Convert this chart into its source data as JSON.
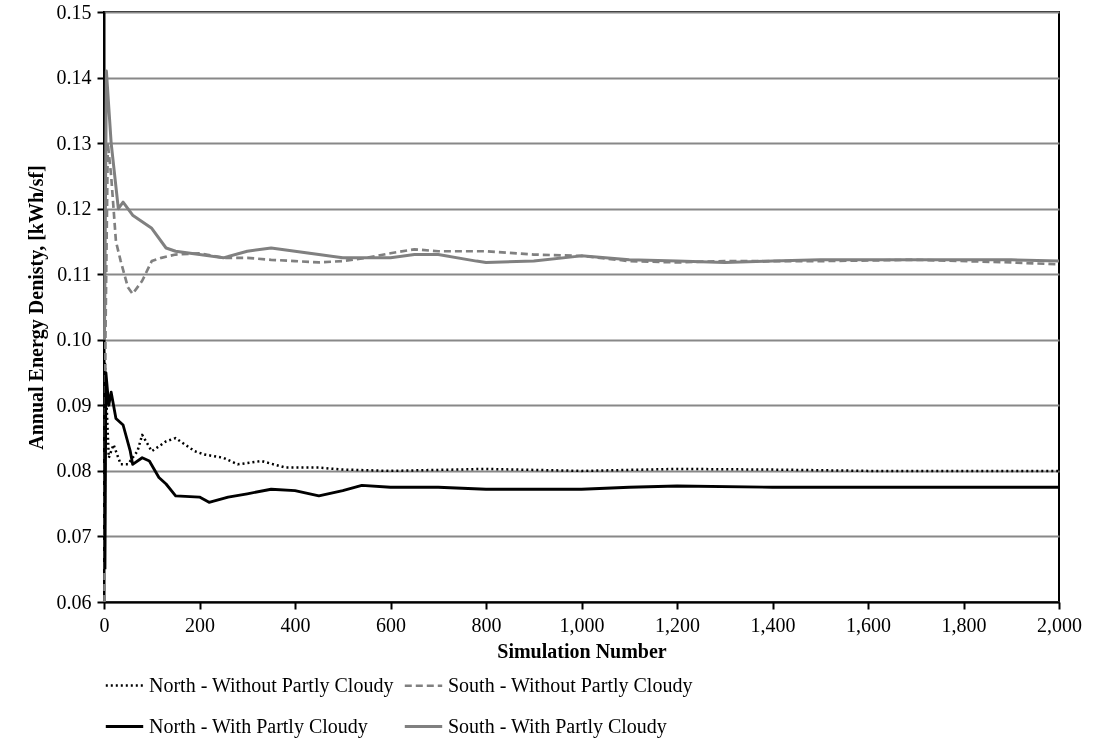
{
  "chart_data": {
    "type": "line",
    "xlabel": "Simulation Number",
    "ylabel": "Annual Energy Denisty, [kWh/sf]",
    "xlim": [
      0,
      2000
    ],
    "ylim": [
      0.06,
      0.15
    ],
    "xticks": [
      0,
      200,
      400,
      600,
      800,
      {
        "value": 1000,
        "label": "1,000"
      },
      {
        "value": 1200,
        "label": "1,200"
      },
      {
        "value": 1400,
        "label": "1,400"
      },
      {
        "value": 1600,
        "label": "1,600"
      },
      {
        "value": 1800,
        "label": "1,800"
      },
      {
        "value": 2000,
        "label": "2,000"
      }
    ],
    "yticks": [
      {
        "value": 0.06,
        "label": "0.06"
      },
      {
        "value": 0.07,
        "label": "0.07"
      },
      {
        "value": 0.08,
        "label": "0.08"
      },
      {
        "value": 0.09,
        "label": "0.09"
      },
      {
        "value": 0.1,
        "label": "0.10"
      },
      {
        "value": 0.11,
        "label": "0.11"
      },
      {
        "value": 0.12,
        "label": "0.12"
      },
      {
        "value": 0.13,
        "label": "0.13"
      },
      {
        "value": 0.14,
        "label": "0.14"
      },
      {
        "value": 0.15,
        "label": "0.15"
      }
    ],
    "grid": "y",
    "legend": "bottom",
    "marker": "none",
    "series": [
      {
        "name": "North - Without Partly Cloudy",
        "color": "#000000",
        "line_style": "dotted",
        "x": [
          1,
          10,
          20,
          35,
          50,
          70,
          80,
          100,
          130,
          150,
          190,
          210,
          250,
          280,
          330,
          380,
          450,
          500,
          600,
          800,
          1000,
          1200,
          1400,
          1600,
          2000
        ],
        "values": [
          0.098,
          0.082,
          0.084,
          0.081,
          0.081,
          0.083,
          0.0855,
          0.083,
          0.0845,
          0.085,
          0.083,
          0.0825,
          0.082,
          0.081,
          0.0815,
          0.0805,
          0.0805,
          0.0802,
          0.08,
          0.0803,
          0.08,
          0.0803,
          0.0802,
          0.08,
          0.08
        ]
      },
      {
        "name": "South - Without Partly Cloudy",
        "color": "#808080",
        "line_style": "dashed",
        "x": [
          1,
          3,
          8,
          15,
          25,
          35,
          50,
          60,
          80,
          100,
          120,
          150,
          200,
          250,
          300,
          350,
          400,
          450,
          500,
          550,
          600,
          650,
          700,
          800,
          900,
          1000,
          1100,
          1200,
          1300,
          1500,
          1700,
          1900,
          2000
        ],
        "values": [
          0.06,
          0.1,
          0.13,
          0.125,
          0.115,
          0.112,
          0.108,
          0.107,
          0.109,
          0.112,
          0.1125,
          0.113,
          0.1132,
          0.1125,
          0.1125,
          0.1122,
          0.112,
          0.1118,
          0.112,
          0.1125,
          0.1132,
          0.1138,
          0.1135,
          0.1135,
          0.113,
          0.1128,
          0.112,
          0.1118,
          0.112,
          0.112,
          0.1122,
          0.1118,
          0.1115
        ]
      },
      {
        "name": "North - With Partly Cloudy",
        "color": "#000000",
        "line_style": "solid",
        "x": [
          2,
          4,
          10,
          15,
          25,
          40,
          55,
          60,
          80,
          95,
          115,
          130,
          150,
          200,
          220,
          260,
          300,
          350,
          400,
          450,
          500,
          540,
          600,
          700,
          800,
          1000,
          1100,
          1200,
          1400,
          1600,
          2000
        ],
        "values": [
          0.065,
          0.095,
          0.09,
          0.092,
          0.088,
          0.087,
          0.083,
          0.081,
          0.082,
          0.0815,
          0.079,
          0.078,
          0.0762,
          0.076,
          0.0752,
          0.076,
          0.0765,
          0.0772,
          0.077,
          0.0762,
          0.077,
          0.0778,
          0.0775,
          0.0775,
          0.0772,
          0.0772,
          0.0775,
          0.0777,
          0.0775,
          0.0775,
          0.0775
        ]
      },
      {
        "name": "South - With Partly Cloudy",
        "color": "#808080",
        "line_style": "solid",
        "x": [
          1,
          5,
          15,
          30,
          40,
          60,
          80,
          100,
          130,
          150,
          200,
          250,
          300,
          350,
          400,
          450,
          500,
          550,
          600,
          650,
          700,
          780,
          800,
          900,
          1000,
          1100,
          1200,
          1300,
          1400,
          1500,
          1600,
          1700,
          1800,
          1900,
          2000
        ],
        "values": [
          0.1,
          0.141,
          0.13,
          0.12,
          0.121,
          0.119,
          0.118,
          0.117,
          0.114,
          0.1135,
          0.113,
          0.1125,
          0.1135,
          0.114,
          0.1135,
          0.113,
          0.1125,
          0.1125,
          0.1125,
          0.113,
          0.113,
          0.112,
          0.1118,
          0.112,
          0.1128,
          0.1122,
          0.112,
          0.1118,
          0.112,
          0.1122,
          0.1122,
          0.1122,
          0.1122,
          0.1122,
          0.112
        ]
      }
    ]
  }
}
